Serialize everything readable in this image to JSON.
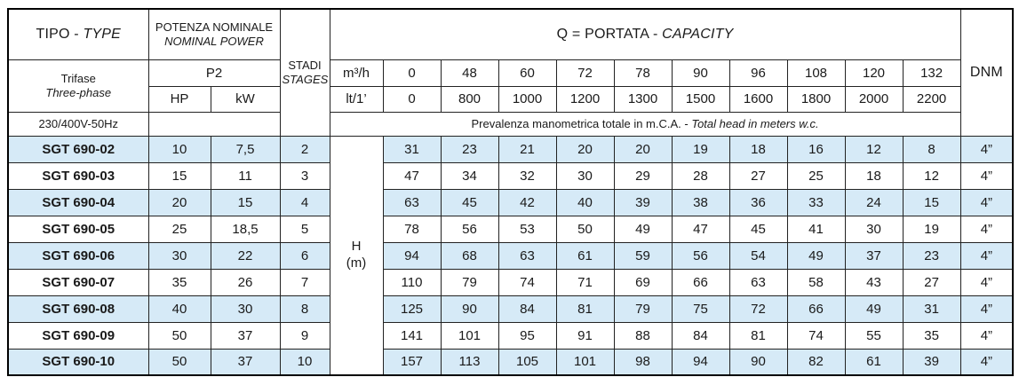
{
  "colors": {
    "stripe": "#d6eaf7",
    "border": "#222222"
  },
  "table": {
    "header": {
      "tipo": {
        "normal": "TIPO - ",
        "italic": "TYPE"
      },
      "power_line1": "POTENZA NOMINALE",
      "power_line2": "NOMINAL POWER",
      "p2": "P2",
      "hp": "HP",
      "kw": "kW",
      "stages_line1": "STADI",
      "stages_line2": "STAGES",
      "capacity": {
        "normal": "Q = PORTATA - ",
        "italic": "CAPACITY"
      },
      "dnm": "DNM",
      "phase_line1": "Trifase",
      "phase_line2": "Three-phase",
      "voltage": "230/400V-50Hz",
      "unit_flow_m3h": "m³/h",
      "unit_flow_lt": "lt/1’",
      "flow_m3h": [
        "0",
        "48",
        "60",
        "72",
        "78",
        "90",
        "96",
        "108",
        "120",
        "132"
      ],
      "flow_lt": [
        "0",
        "800",
        "1000",
        "1200",
        "1300",
        "1500",
        "1600",
        "1800",
        "2000",
        "2200"
      ],
      "head_note": {
        "normal": "Prevalenza manometrica totale in m.C.A. - ",
        "italic": "Total head in meters w.c."
      }
    },
    "h_label_line1": "H",
    "h_label_line2": "(m)",
    "rows": [
      {
        "type": "SGT 690-02",
        "hp": "10",
        "kw": "7,5",
        "stages": "2",
        "heads": [
          "31",
          "23",
          "21",
          "20",
          "20",
          "19",
          "18",
          "16",
          "12",
          "8"
        ],
        "dnm": "4”"
      },
      {
        "type": "SGT 690-03",
        "hp": "15",
        "kw": "11",
        "stages": "3",
        "heads": [
          "47",
          "34",
          "32",
          "30",
          "29",
          "28",
          "27",
          "25",
          "18",
          "12"
        ],
        "dnm": "4”"
      },
      {
        "type": "SGT 690-04",
        "hp": "20",
        "kw": "15",
        "stages": "4",
        "heads": [
          "63",
          "45",
          "42",
          "40",
          "39",
          "38",
          "36",
          "33",
          "24",
          "15"
        ],
        "dnm": "4”"
      },
      {
        "type": "SGT 690-05",
        "hp": "25",
        "kw": "18,5",
        "stages": "5",
        "heads": [
          "78",
          "56",
          "53",
          "50",
          "49",
          "47",
          "45",
          "41",
          "30",
          "19"
        ],
        "dnm": "4”"
      },
      {
        "type": "SGT 690-06",
        "hp": "30",
        "kw": "22",
        "stages": "6",
        "heads": [
          "94",
          "68",
          "63",
          "61",
          "59",
          "56",
          "54",
          "49",
          "37",
          "23"
        ],
        "dnm": "4”"
      },
      {
        "type": "SGT 690-07",
        "hp": "35",
        "kw": "26",
        "stages": "7",
        "heads": [
          "110",
          "79",
          "74",
          "71",
          "69",
          "66",
          "63",
          "58",
          "43",
          "27"
        ],
        "dnm": "4”"
      },
      {
        "type": "SGT 690-08",
        "hp": "40",
        "kw": "30",
        "stages": "8",
        "heads": [
          "125",
          "90",
          "84",
          "81",
          "79",
          "75",
          "72",
          "66",
          "49",
          "31"
        ],
        "dnm": "4”"
      },
      {
        "type": "SGT 690-09",
        "hp": "50",
        "kw": "37",
        "stages": "9",
        "heads": [
          "141",
          "101",
          "95",
          "91",
          "88",
          "84",
          "81",
          "74",
          "55",
          "35"
        ],
        "dnm": "4”"
      },
      {
        "type": "SGT 690-10",
        "hp": "50",
        "kw": "37",
        "stages": "10",
        "heads": [
          "157",
          "113",
          "105",
          "101",
          "98",
          "94",
          "90",
          "82",
          "61",
          "39"
        ],
        "dnm": "4”"
      }
    ]
  }
}
